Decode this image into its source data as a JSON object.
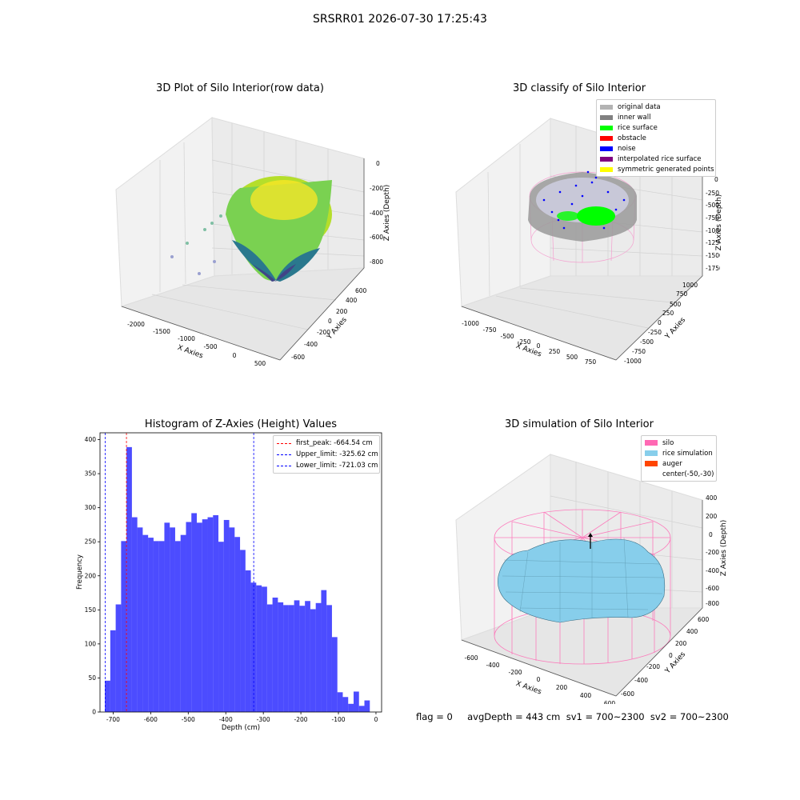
{
  "figure": {
    "suptitle": "SRSRR01 2026-07-30 17:25:43",
    "footer": "flag = 0     avgDepth = 443 cm  sv1 = 700~2300  sv2 = 700~2300"
  },
  "panels": {
    "raw": {
      "title": "3D Plot of Silo Interior(row data)",
      "xlabel": "X Axies",
      "ylabel": "Y Axies",
      "zlabel": "Z Axies (Depth)",
      "xticks": [
        "-2000",
        "-1500",
        "-1000",
        "-500",
        "0",
        "500"
      ],
      "yticks": [
        "-600",
        "-400",
        "-200",
        "0",
        "200",
        "400",
        "600"
      ],
      "zticks": [
        "0",
        "-200",
        "-400",
        "-600",
        "-800"
      ]
    },
    "classify": {
      "title": "3D classify of Silo Interior",
      "xlabel": "X Axies",
      "ylabel": "Y Axies",
      "zlabel": "Z Axies (Depth)",
      "xticks": [
        "-1000",
        "-750",
        "-500",
        "-250",
        "0",
        "250",
        "500",
        "750"
      ],
      "yticks": [
        "-1000",
        "-750",
        "-500",
        "-250",
        "0",
        "250",
        "500",
        "750",
        "1000"
      ],
      "zticks": [
        "0",
        "-250",
        "-500",
        "-750",
        "-1000",
        "-1250",
        "-1500",
        "-1750"
      ],
      "legend": [
        {
          "label": "original data",
          "color": "#b3b3b3"
        },
        {
          "label": "inner wall",
          "color": "#808080"
        },
        {
          "label": "rice surface",
          "color": "#00ff00"
        },
        {
          "label": "obstacle",
          "color": "#ff0000"
        },
        {
          "label": "noise",
          "color": "#0000ff"
        },
        {
          "label": "interpolated rice surface",
          "color": "#800080"
        },
        {
          "label": "symmetric generated points",
          "color": "#ffff00"
        }
      ]
    },
    "simulation": {
      "title": "3D simulation of Silo Interior",
      "xlabel": "X Axies",
      "ylabel": "Y Axies",
      "zlabel": "Z Axies (Depth)",
      "xticks": [
        "-600",
        "-400",
        "-200",
        "0",
        "200",
        "400",
        "600"
      ],
      "yticks": [
        "-600",
        "-400",
        "-200",
        "0",
        "200",
        "400",
        "600"
      ],
      "zticks": [
        "400",
        "200",
        "0",
        "-200",
        "-400",
        "-600",
        "-800"
      ],
      "legend": [
        {
          "label": "silo",
          "color": "#ff69b4"
        },
        {
          "label": "rice simulation",
          "color": "#87ceeb"
        },
        {
          "label": "auger",
          "color": "#ff4500"
        },
        {
          "label": "center(-50,-30)",
          "color": "none"
        }
      ]
    }
  },
  "chart_data": {
    "type": "bar",
    "title": "Histogram of Z-Axies (Height) Values",
    "xlabel": "Depth (cm)",
    "ylabel": "Frequency",
    "xlim": [
      -735,
      15
    ],
    "ylim": [
      0,
      410
    ],
    "xticks": [
      -700,
      -600,
      -500,
      -400,
      -300,
      -200,
      -100,
      0
    ],
    "yticks": [
      0,
      50,
      100,
      150,
      200,
      250,
      300,
      350,
      400
    ],
    "bar_color": "#0000ff",
    "bin_width": 14.4,
    "bins_start": -722,
    "values": [
      46,
      120,
      158,
      251,
      389,
      286,
      271,
      260,
      256,
      251,
      251,
      278,
      271,
      251,
      260,
      279,
      292,
      278,
      283,
      286,
      289,
      250,
      282,
      271,
      257,
      238,
      208,
      190,
      186,
      184,
      158,
      168,
      161,
      157,
      157,
      164,
      156,
      163,
      151,
      160,
      179,
      157,
      110,
      29,
      22,
      12,
      30,
      9,
      17
    ],
    "lines": [
      {
        "label": "first_peak: -664.54 cm",
        "x": -664.54,
        "color": "#ff0000"
      },
      {
        "label": "Upper_limit: -325.62 cm",
        "x": -325.62,
        "color": "#0000ff"
      },
      {
        "label": "Lower_limit: -721.03 cm",
        "x": -721.03,
        "color": "#0000ff"
      }
    ],
    "legend_position": "upper right"
  }
}
